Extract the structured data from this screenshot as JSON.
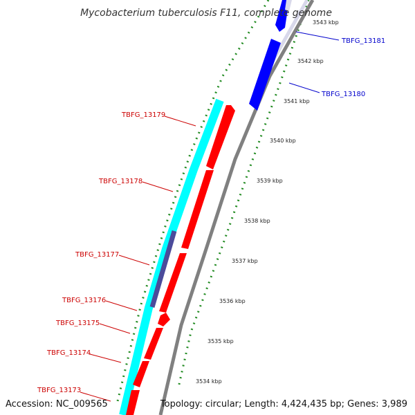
{
  "title": "Mycobacterium tuberculosis F11, complete genome",
  "accession": "Accession: NC_009565",
  "summary": "Topology: circular; Length: 4,424,435 bp; Genes: 3,989",
  "colors": {
    "forward_gene": "#ff0000",
    "reverse_gene": "#0000ff",
    "cds_track": "#00ffff",
    "feature_track": "#4b4b9b",
    "backbone": "#808080",
    "tick": "#228b22",
    "forward_label": "#cc0000",
    "reverse_label": "#0000cc"
  },
  "scale_ticks": [
    "3543 kbp",
    "3542 kbp",
    "3541 kbp",
    "3540 kbp",
    "3539 kbp",
    "3538 kbp",
    "3537 kbp",
    "3536 kbp",
    "3535 kbp",
    "3534 kbp"
  ],
  "genes": [
    {
      "label": "TBFG_13181",
      "strand": "reverse"
    },
    {
      "label": "TBFG_13180",
      "strand": "reverse"
    },
    {
      "label": "TBFG_13179",
      "strand": "forward"
    },
    {
      "label": "TBFG_13178",
      "strand": "forward"
    },
    {
      "label": "TBFG_13177",
      "strand": "forward"
    },
    {
      "label": "TBFG_13176",
      "strand": "forward"
    },
    {
      "label": "TBFG_13175",
      "strand": "forward"
    },
    {
      "label": "TBFG_13174",
      "strand": "forward"
    },
    {
      "label": "TBFG_13173",
      "strand": "forward"
    }
  ]
}
